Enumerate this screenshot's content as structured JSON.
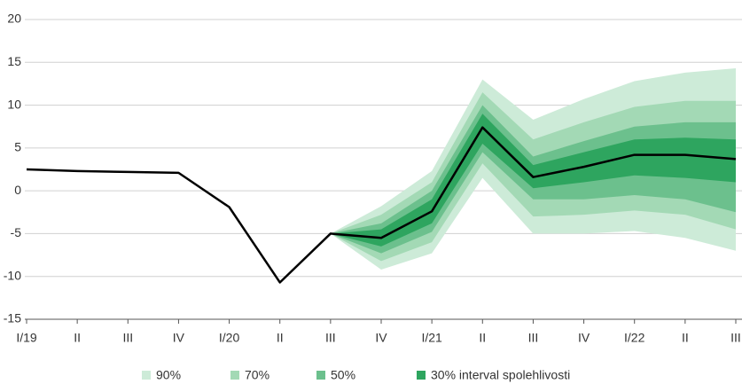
{
  "chart_data": {
    "type": "fan",
    "categories": [
      "I/19",
      "II",
      "III",
      "IV",
      "I/20",
      "II",
      "III",
      "IV",
      "I/21",
      "II",
      "III",
      "IV",
      "I/22",
      "II",
      "III"
    ],
    "ylim": [
      -15,
      20
    ],
    "yticks": [
      -15,
      -10,
      -5,
      0,
      5,
      10,
      15,
      20
    ],
    "grid": true,
    "line": {
      "color": "#000000",
      "values": [
        2.5,
        2.3,
        2.2,
        2.1,
        -1.9,
        -10.7,
        -5.0,
        -5.5,
        -2.4,
        7.4,
        1.6,
        2.8,
        4.2,
        4.2,
        3.7
      ]
    },
    "bands": [
      {
        "name": "90%",
        "color": "#cdebd8",
        "lower": [
          null,
          null,
          null,
          null,
          null,
          null,
          -5,
          -9.2,
          -7.3,
          1.5,
          -5,
          -5,
          -4.7,
          -5.5,
          -7
        ],
        "upper": [
          null,
          null,
          null,
          null,
          null,
          null,
          -5,
          -1.8,
          2.3,
          13,
          8.3,
          10.7,
          12.8,
          13.8,
          14.3
        ]
      },
      {
        "name": "70%",
        "color": "#a3d9b5",
        "lower": [
          null,
          null,
          null,
          null,
          null,
          null,
          -5,
          -8.2,
          -6,
          3.2,
          -3,
          -2.8,
          -2.3,
          -2.8,
          -4.5
        ],
        "upper": [
          null,
          null,
          null,
          null,
          null,
          null,
          -5,
          -2.8,
          1,
          11.5,
          6,
          8,
          9.8,
          10.5,
          10.5
        ]
      },
      {
        "name": "50%",
        "color": "#6cc08d",
        "lower": [
          null,
          null,
          null,
          null,
          null,
          null,
          -5,
          -7.3,
          -4.8,
          4.5,
          -1,
          -1,
          -0.5,
          -1,
          -2.5
        ],
        "upper": [
          null,
          null,
          null,
          null,
          null,
          null,
          -5,
          -3.8,
          0,
          10,
          4,
          5.8,
          7.5,
          8,
          8
        ]
      },
      {
        "name": "30% interval spolehlivosti",
        "color": "#2ea55f",
        "lower": [
          null,
          null,
          null,
          null,
          null,
          null,
          -5,
          -6.5,
          -3.8,
          5.5,
          0.3,
          1,
          1.8,
          1.5,
          1
        ],
        "upper": [
          null,
          null,
          null,
          null,
          null,
          null,
          -5,
          -4.5,
          -1,
          9,
          3,
          4.5,
          6,
          6.2,
          6
        ]
      }
    ]
  }
}
